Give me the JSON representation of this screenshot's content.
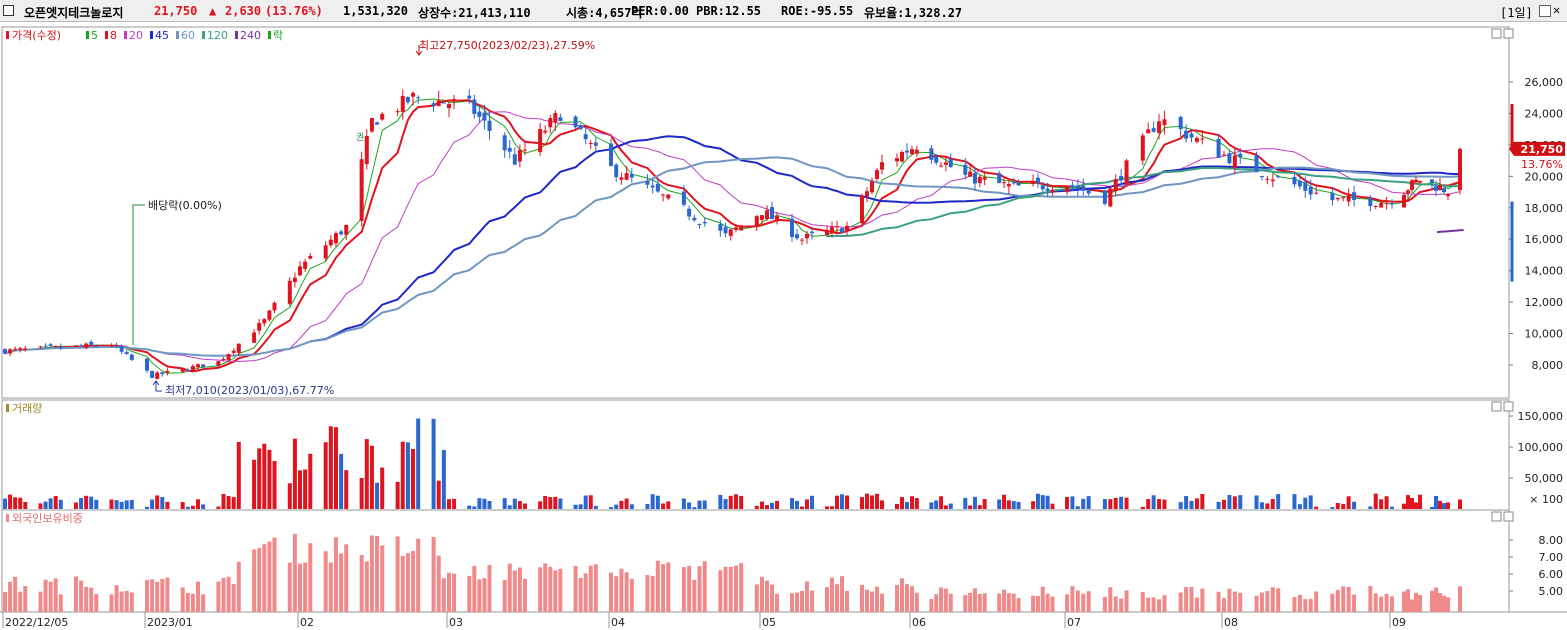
{
  "header": {
    "stock_name": "오픈엣지테크놀로지",
    "price": "21,750",
    "change_symbol": "▲",
    "change": "2,630",
    "change_pct": "(13.76%)",
    "volume": "1,531,320",
    "listed_shares": "상장수:21,413,110",
    "market_cap": "시총:4,657억",
    "per": "PER:0.00",
    "pbr": "PBR:12.55",
    "roe": "ROE:-95.55",
    "turnover": "유보율:1,328.27",
    "period": "[1일]"
  },
  "colors": {
    "up": "#e0141e",
    "down": "#2a68d0",
    "ma5": "#1ea51e",
    "ma8": "#e0141e",
    "ma20": "#c03cc8",
    "ma45": "#1e28c8",
    "ma60": "#6e96c0",
    "ma120": "#3ca082",
    "ma240": "#7832a0",
    "foreign": "#f08a8a"
  },
  "price_panel": {
    "legend_price": "가격(수정)",
    "legend_items": [
      {
        "label": "5",
        "color": "#1ea51e"
      },
      {
        "label": "8",
        "color": "#e0141e"
      },
      {
        "label": "20",
        "color": "#c03cc8"
      },
      {
        "label": "45",
        "color": "#1e28c8"
      },
      {
        "label": "60",
        "color": "#6e96c0"
      },
      {
        "label": "120",
        "color": "#3ca082"
      },
      {
        "label": "240",
        "color": "#7832a0"
      },
      {
        "label": "락",
        "color": "#1ea51e"
      }
    ],
    "annotation_high": "최고27,750(2023/02/23),27.59%",
    "annotation_low": "최저7,010(2023/01/03),67.77%",
    "annotation_dividend": "배당락(0.00%)",
    "annotation_rights": "권",
    "price_tag": "21,750",
    "pct_tag": "13.76%",
    "y_ticks": [
      "26,000",
      "24,000",
      "22,000",
      "20,000",
      "18,000",
      "16,000",
      "14,000",
      "12,000",
      "10,000",
      "8,000"
    ]
  },
  "volume_panel": {
    "legend": "거래량",
    "y_ticks": [
      "150,000",
      "100,000",
      "50,000"
    ],
    "unit": "× 100"
  },
  "foreign_panel": {
    "legend": "외국인보유비중",
    "y_ticks": [
      "8.00",
      "7.00",
      "6.00",
      "5.00"
    ]
  },
  "x_axis": [
    "2022/12/05",
    "2023/01",
    "02",
    "03",
    "04",
    "05",
    "06",
    "07",
    "08",
    "09"
  ],
  "chart_data": {
    "type": "candlestick",
    "period": "daily",
    "price_range": [
      7010,
      27750
    ],
    "high": {
      "value": 27750,
      "date": "2023/02/23"
    },
    "low": {
      "value": 7010,
      "date": "2023/01/03"
    },
    "anchors": [
      {
        "date": "2022/12/05",
        "close": 8900
      },
      {
        "date": "2022/12/26",
        "close": 9300
      },
      {
        "date": "2023/01/03",
        "close": 7300
      },
      {
        "date": "2023/01/16",
        "close": 8200
      },
      {
        "date": "2023/01/25",
        "close": 10800
      },
      {
        "date": "2023/02/01",
        "close": 14200
      },
      {
        "date": "2023/02/10",
        "close": 16800
      },
      {
        "date": "2023/02/15",
        "close": 23500
      },
      {
        "date": "2023/02/23",
        "close": 25000
      },
      {
        "date": "2023/03/06",
        "close": 24500
      },
      {
        "date": "2023/03/15",
        "close": 21000
      },
      {
        "date": "2023/03/24",
        "close": 24000
      },
      {
        "date": "2023/04/03",
        "close": 20500
      },
      {
        "date": "2023/04/14",
        "close": 18500
      },
      {
        "date": "2023/04/25",
        "close": 16200
      },
      {
        "date": "2023/05/02",
        "close": 17800
      },
      {
        "date": "2023/05/10",
        "close": 16000
      },
      {
        "date": "2023/05/19",
        "close": 16800
      },
      {
        "date": "2023/05/26",
        "close": 20800
      },
      {
        "date": "2023/06/02",
        "close": 22000
      },
      {
        "date": "2023/06/12",
        "close": 20000
      },
      {
        "date": "2023/06/22",
        "close": 19300
      },
      {
        "date": "2023/07/03",
        "close": 19500
      },
      {
        "date": "2023/07/10",
        "close": 18600
      },
      {
        "date": "2023/07/20",
        "close": 23700
      },
      {
        "date": "2023/07/31",
        "close": 21500
      },
      {
        "date": "2023/08/10",
        "close": 20000
      },
      {
        "date": "2023/08/21",
        "close": 18500
      },
      {
        "date": "2023/08/31",
        "close": 18400
      },
      {
        "date": "2023/09/08",
        "close": 19800
      },
      {
        "date": "2023/09/15",
        "close": 19100
      },
      {
        "date": "2023/09/18",
        "close": 21750
      }
    ],
    "last_volume": 1531320
  }
}
